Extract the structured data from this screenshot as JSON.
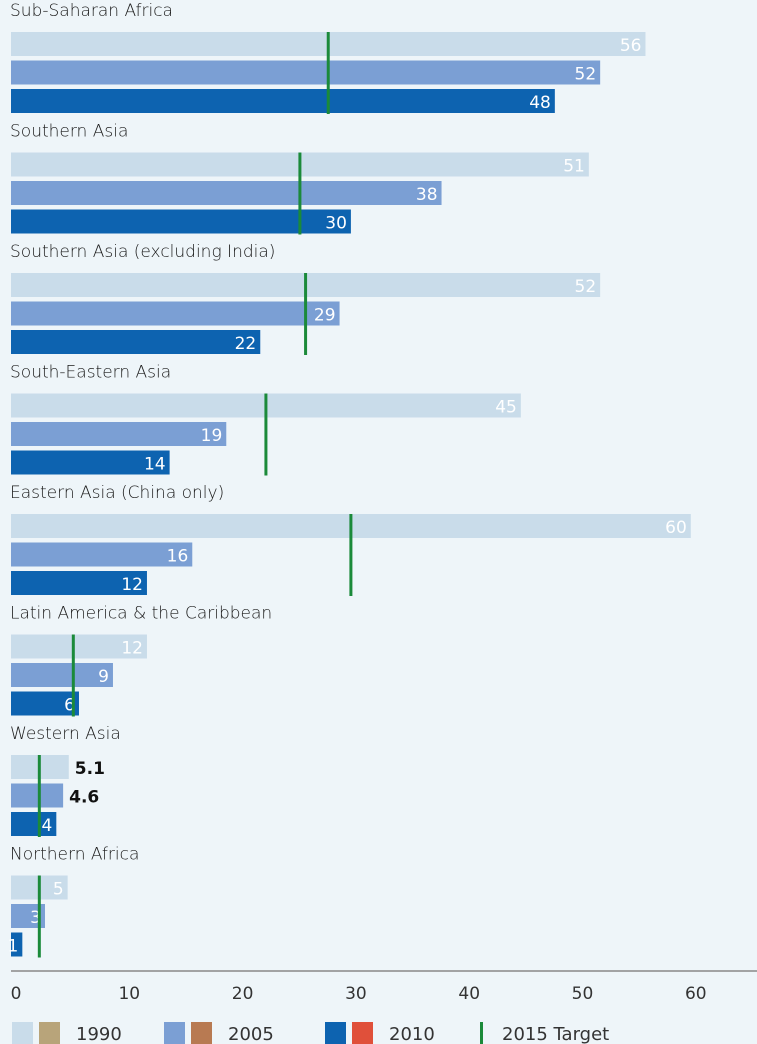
{
  "chart_data": {
    "type": "bar",
    "orientation": "horizontal",
    "xlim": [
      0,
      65
    ],
    "x_ticks": [
      "0",
      "10",
      "20",
      "30",
      "40",
      "50",
      "60"
    ],
    "categories": [
      "Sub-Saharan Africa",
      "Southern Asia",
      "Southern Asia (excluding India)",
      "South-Eastern Asia",
      "Eastern Asia (China only)",
      "Latin America & the Caribbean",
      "Western Asia",
      "Northern Africa"
    ],
    "series": [
      {
        "name": "1990",
        "color": "#c9dcea",
        "values": [
          56,
          51,
          52,
          45,
          60,
          12,
          5.1,
          5
        ],
        "labels": [
          "56",
          "51",
          "52",
          "45",
          "60",
          "12",
          "5.1",
          "5"
        ]
      },
      {
        "name": "2005",
        "color": "#7b9fd4",
        "values": [
          52,
          38,
          29,
          19,
          16,
          9,
          4.6,
          3
        ],
        "labels": [
          "52",
          "38",
          "29",
          "19",
          "16",
          "9",
          "4.6",
          "3"
        ]
      },
      {
        "name": "2010",
        "color": "#0d63b0",
        "values": [
          48,
          30,
          22,
          14,
          12,
          6,
          4,
          1
        ],
        "labels": [
          "48",
          "30",
          "22",
          "14",
          "12",
          "6",
          "4",
          "1"
        ]
      }
    ],
    "target": {
      "name": "2015 Target",
      "color": "#1b8a3a",
      "values": [
        28,
        25.5,
        26,
        22.5,
        30,
        5.5,
        2.5,
        2.5
      ]
    },
    "legend": {
      "position": "bottom",
      "items": [
        {
          "label": "1990",
          "colors": [
            "#c9dcea",
            "#b8a47a"
          ]
        },
        {
          "label": "2005",
          "colors": [
            "#7b9fd4",
            "#b87a52"
          ]
        },
        {
          "label": "2010",
          "colors": [
            "#0d63b0",
            "#e0503a"
          ]
        },
        {
          "label": "2015 Target",
          "colors": [
            "#1b8a3a"
          ]
        }
      ]
    }
  }
}
